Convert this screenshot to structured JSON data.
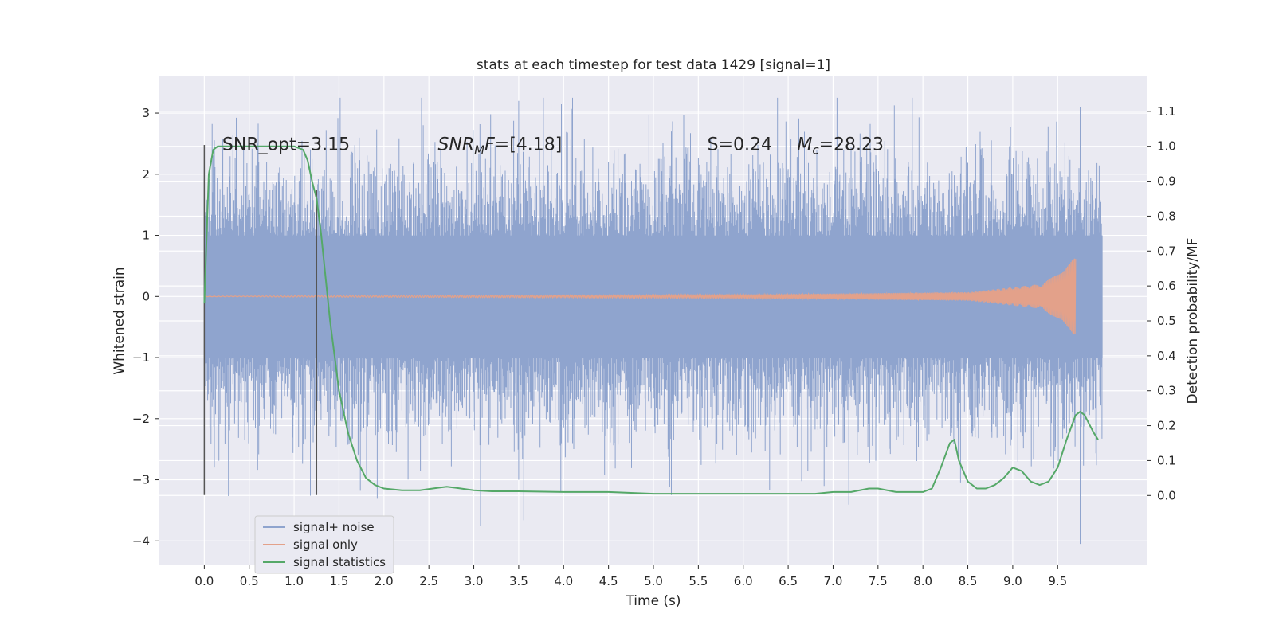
{
  "chart_data": {
    "type": "line",
    "title": "stats at each timestep for test data 1429 [signal=1]",
    "xlabel": "Time (s)",
    "ylabel_left": "Whitened strain",
    "ylabel_right": "Detection probability/MF",
    "xlim": [
      -0.5,
      10.5
    ],
    "ylim_left": [
      -4.4,
      3.6
    ],
    "ylim_right": [
      -0.2,
      1.2
    ],
    "x_ticks": [
      "0.0",
      "0.5",
      "1.0",
      "1.5",
      "2.0",
      "2.5",
      "3.0",
      "3.5",
      "4.0",
      "4.5",
      "5.0",
      "5.5",
      "6.0",
      "6.5",
      "7.0",
      "7.5",
      "8.0",
      "8.5",
      "9.0",
      "9.5"
    ],
    "x_tick_values": [
      0.0,
      0.5,
      1.0,
      1.5,
      2.0,
      2.5,
      3.0,
      3.5,
      4.0,
      4.5,
      5.0,
      5.5,
      6.0,
      6.5,
      7.0,
      7.5,
      8.0,
      8.5,
      9.0,
      9.5
    ],
    "y_left_ticks": [
      "3",
      "2",
      "1",
      "0",
      "−1",
      "−2",
      "−3",
      "−4"
    ],
    "y_left_tick_values": [
      3,
      2,
      1,
      0,
      -1,
      -2,
      -3,
      -4
    ],
    "y_right_ticks": [
      "1.1",
      "1.0",
      "0.9",
      "0.8",
      "0.7",
      "0.6",
      "0.5",
      "0.4",
      "0.3",
      "0.2",
      "0.1",
      "0.0"
    ],
    "y_right_tick_values": [
      1.1,
      1.0,
      0.9,
      0.8,
      0.7,
      0.6,
      0.5,
      0.4,
      0.3,
      0.2,
      0.1,
      0.0
    ],
    "grid": true,
    "legend_position": "lower-left",
    "annotations": [
      {
        "text": "SNR_opt=3.15",
        "x": 0.2,
        "y": 2.5
      },
      {
        "text": "SNR",
        "sub": "M",
        "tail": "F=[4.18]",
        "x": 2.6,
        "y": 2.5
      },
      {
        "text": "S=0.24",
        "x": 5.6,
        "y": 2.5
      },
      {
        "text": "M",
        "sub": "c",
        "tail": "=28.23",
        "x": 6.6,
        "y": 2.5
      }
    ],
    "vertical_markers": [
      {
        "x": 0.0,
        "y_range": [
          -3.25,
          2.48
        ]
      },
      {
        "x": 1.25,
        "y_range": [
          -3.25,
          1.75
        ]
      }
    ],
    "series": [
      {
        "name": "signal+ noise",
        "axis": "left",
        "color": "#8fa4ce",
        "style": "dense-noise",
        "x_range": [
          0.0,
          10.0
        ],
        "core_band": [
          -1.0,
          1.0
        ],
        "peak_max": 3.25,
        "peak_min": -4.05
      },
      {
        "name": "signal only",
        "axis": "left",
        "color": "#e3a18a",
        "style": "chirp",
        "x_range": [
          0.0,
          9.7
        ],
        "envelope_at": [
          [
            0.0,
            0.005
          ],
          [
            6.0,
            0.03
          ],
          [
            8.5,
            0.07
          ],
          [
            9.3,
            0.2
          ],
          [
            9.55,
            0.4
          ],
          [
            9.68,
            0.62
          ]
        ]
      },
      {
        "name": "signal statistics",
        "axis": "right",
        "color": "#55a868",
        "style": "line",
        "x": [
          0.0,
          0.05,
          0.1,
          0.15,
          0.2,
          0.3,
          0.5,
          0.7,
          0.9,
          1.0,
          1.1,
          1.15,
          1.2,
          1.25,
          1.3,
          1.4,
          1.5,
          1.6,
          1.7,
          1.8,
          1.9,
          2.0,
          2.2,
          2.4,
          2.6,
          2.7,
          2.8,
          3.0,
          3.2,
          3.5,
          4.0,
          4.5,
          5.0,
          5.5,
          6.0,
          6.5,
          6.8,
          7.0,
          7.2,
          7.4,
          7.5,
          7.7,
          8.0,
          8.1,
          8.2,
          8.3,
          8.35,
          8.4,
          8.5,
          8.6,
          8.7,
          8.8,
          8.9,
          9.0,
          9.1,
          9.2,
          9.3,
          9.4,
          9.5,
          9.6,
          9.7,
          9.75,
          9.8,
          9.9,
          9.95
        ],
        "y": [
          0.55,
          0.92,
          0.99,
          1.0,
          1.0,
          1.0,
          1.0,
          1.0,
          1.0,
          1.0,
          0.99,
          0.96,
          0.9,
          0.85,
          0.75,
          0.5,
          0.3,
          0.18,
          0.1,
          0.05,
          0.03,
          0.02,
          0.015,
          0.015,
          0.022,
          0.025,
          0.022,
          0.015,
          0.012,
          0.012,
          0.01,
          0.01,
          0.005,
          0.005,
          0.005,
          0.005,
          0.005,
          0.01,
          0.01,
          0.02,
          0.02,
          0.01,
          0.01,
          0.02,
          0.08,
          0.15,
          0.16,
          0.1,
          0.04,
          0.02,
          0.02,
          0.03,
          0.05,
          0.08,
          0.07,
          0.04,
          0.03,
          0.04,
          0.08,
          0.16,
          0.23,
          0.24,
          0.23,
          0.18,
          0.16
        ]
      }
    ]
  }
}
